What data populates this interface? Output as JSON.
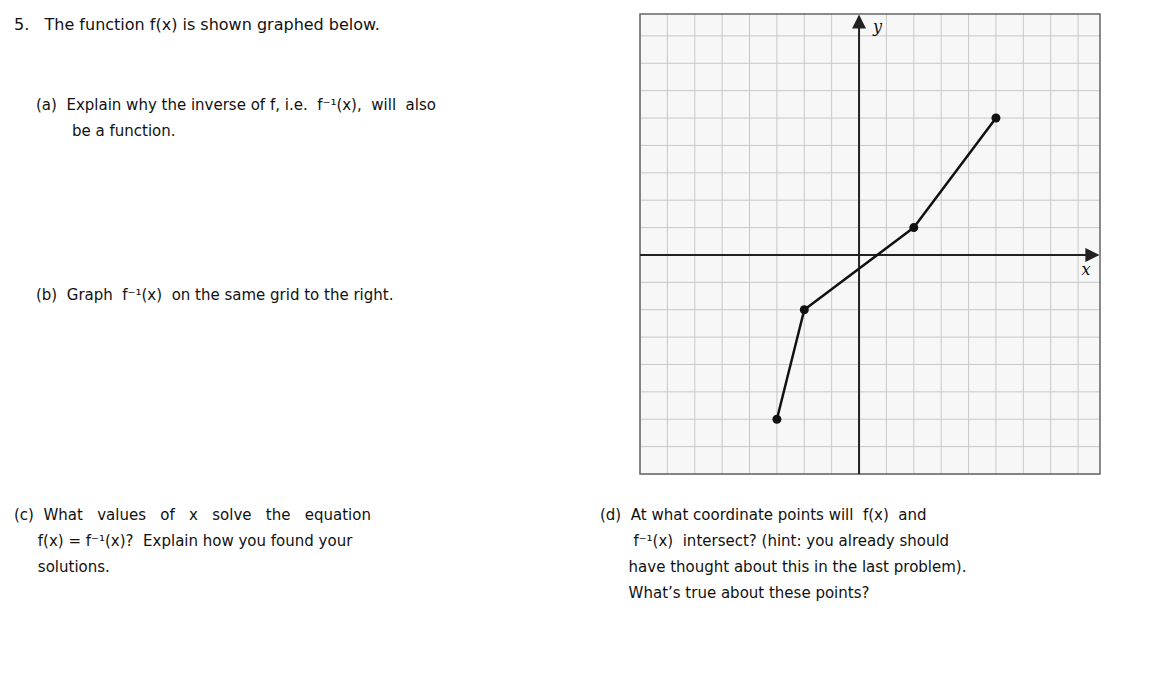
{
  "chart_data": {
    "type": "line",
    "title": "5.   The function f(x) is shown graphed below.",
    "xlabel": "x",
    "ylabel": "y",
    "x": [
      -3,
      -2,
      2,
      5
    ],
    "series": [
      {
        "name": "f(x)",
        "color": "#111111",
        "marker": "circle",
        "line_style": "solid",
        "values": [
          -6,
          -2,
          1,
          5
        ]
      }
    ],
    "xlim": [
      -8,
      8.8
    ],
    "ylim": [
      -8,
      8.8
    ],
    "xticks": [
      -8,
      -7,
      -6,
      -5,
      -4,
      -3,
      -2,
      -1,
      0,
      1,
      2,
      3,
      4,
      5,
      6,
      7,
      8
    ],
    "yticks": [
      -8,
      -7,
      -6,
      -5,
      -4,
      -3,
      -2,
      -1,
      0,
      1,
      2,
      3,
      4,
      5,
      6,
      7,
      8
    ],
    "grid": true,
    "tick_labels": false,
    "annotations": [
      "(a)  Explain why the inverse of f, i.e.  f⁻¹(x),  will  also",
      "be a function.",
      "(b)  Graph  f⁻¹(x)  on the same grid to the right.",
      "(c)  What   values   of   x   solve   the   equation",
      "     f(x) = f⁻¹(x)?  Explain how you found your",
      "     solutions.",
      "(d)  At what coordinate points will  f(x)  and",
      "       f⁻¹(x)  intersect? (hint: you already should",
      "      have thought about this in the last problem).",
      "      What’s true about these points?"
    ]
  }
}
